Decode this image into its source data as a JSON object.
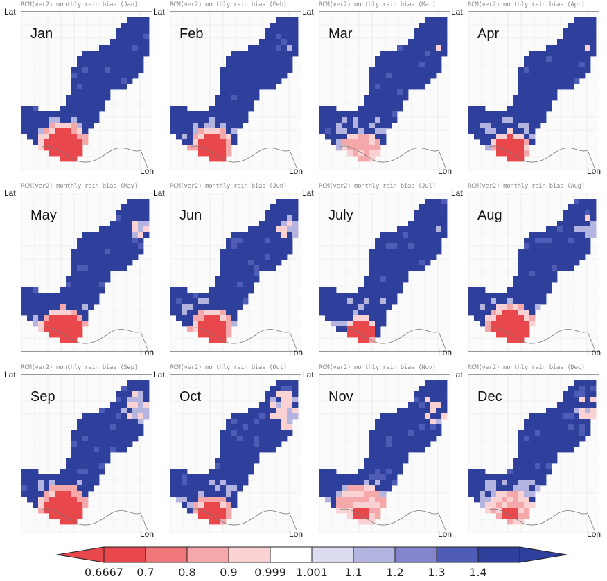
{
  "panels": [
    {
      "title": "RCM(ver2) monthly rain bias (Jan)",
      "month": "Jan",
      "lat": "Lat",
      "lon": "Lon",
      "red": 1.0,
      "pink": 0.4,
      "blue_spots": 0.1
    },
    {
      "title": "RCM(ver2) monthly rain bias (Feb)",
      "month": "Feb",
      "lat": "Lat",
      "lon": "Lon",
      "red": 0.8,
      "pink": 0.4,
      "blue_spots": 0.1
    },
    {
      "title": "RCM(ver2) monthly rain bias (Mar)",
      "month": "Mar",
      "lat": "Lat",
      "lon": "Lon",
      "red": 0.1,
      "pink": 0.6,
      "blue_spots": 0.1
    },
    {
      "title": "RCM(ver2) monthly rain bias (Apr)",
      "month": "Apr",
      "lat": "Lat",
      "lon": "Lon",
      "red": 0.7,
      "pink": 0.4,
      "blue_spots": 0.1
    },
    {
      "title": "RCM(ver2) monthly rain bias (May)",
      "month": "May",
      "lat": "Lat",
      "lon": "Lon",
      "red": 0.9,
      "pink": 0.3,
      "blue_spots": 0.4
    },
    {
      "title": "RCM(ver2) monthly rain bias (Jun)",
      "month": "Jun",
      "lat": "Lat",
      "lon": "Lon",
      "red": 0.8,
      "pink": 0.3,
      "blue_spots": 0.5
    },
    {
      "title": "RCM(ver2) monthly rain bias (Jul)",
      "month": "July",
      "lat": "Lat",
      "lon": "Lon",
      "red": 0.6,
      "pink": 0.2,
      "blue_spots": 0.1
    },
    {
      "title": "RCM(ver2) monthly rain bias (Aug)",
      "month": "Aug",
      "lat": "Lat",
      "lon": "Lon",
      "red": 1.0,
      "pink": 0.3,
      "blue_spots": 0.5
    },
    {
      "title": "RCM(ver2) monthly rain bias (Sep)",
      "month": "Sep",
      "lat": "Lat",
      "lon": "Lon",
      "red": 1.0,
      "pink": 0.5,
      "blue_spots": 0.8
    },
    {
      "title": "RCM(ver2) monthly rain bias (Oct)",
      "month": "Oct",
      "lat": "Lat",
      "lon": "Lon",
      "red": 0.6,
      "pink": 0.6,
      "blue_spots": 0.9
    },
    {
      "title": "RCM(ver2) monthly rain bias (Nov)",
      "month": "Nov",
      "lat": "Lat",
      "lon": "Lon",
      "red": 0.3,
      "pink": 0.9,
      "blue_spots": 0.7
    },
    {
      "title": "RCM(ver2) monthly rain bias (Dec)",
      "month": "Dec",
      "lat": "Lat",
      "lon": "Lon",
      "red": 0.3,
      "pink": 0.8,
      "blue_spots": 0.6
    }
  ],
  "colorbar": {
    "labels": [
      "0.6667",
      "0.7",
      "0.8",
      "0.9",
      "0.999",
      "1.001",
      "1.1",
      "1.2",
      "1.3",
      "1.4"
    ],
    "colors": [
      "#e8474b",
      "#f0777a",
      "#f5a8aa",
      "#fad2d3",
      "#ffffff",
      "#dcdcf0",
      "#b4b4e0",
      "#8585cc",
      "#4e5cb6",
      "#2f3f9c"
    ]
  },
  "colors": {
    "main_blue": "#2f3f9c",
    "mid_blue": "#4e5cb6",
    "light_blue": "#b4b4e0",
    "red": "#e8474b",
    "pink": "#f5a8aa",
    "light_pink": "#fad2d3"
  }
}
